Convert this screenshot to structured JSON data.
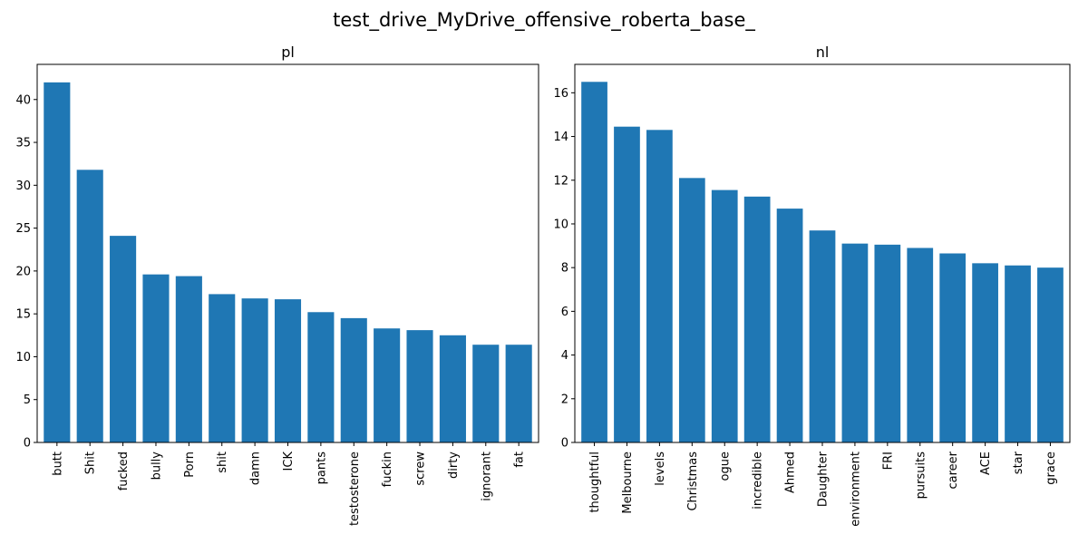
{
  "figure": {
    "title": "test_drive_MyDrive_offensive_roberta_base_"
  },
  "colors": {
    "bar": "#1f77b4",
    "axes": "#000000",
    "background": "#ffffff"
  },
  "chart_data": [
    {
      "type": "bar",
      "title": "pl",
      "xlabel": "",
      "ylabel": "",
      "ylim": [
        0,
        44.1
      ],
      "yticks": [
        0,
        5,
        10,
        15,
        20,
        25,
        30,
        35,
        40
      ],
      "grid": false,
      "categories": [
        "butt",
        "Shit",
        "fucked",
        "bully",
        "Porn",
        "shit",
        "damn",
        "ICK",
        "pants",
        "testosterone",
        "fuckin",
        "screw",
        "dirty",
        "ignorant",
        "fat"
      ],
      "values": [
        42.0,
        31.8,
        24.1,
        19.6,
        19.4,
        17.3,
        16.8,
        16.7,
        15.2,
        14.5,
        13.3,
        13.1,
        12.5,
        11.4,
        11.4
      ]
    },
    {
      "type": "bar",
      "title": "nl",
      "xlabel": "",
      "ylabel": "",
      "ylim": [
        0,
        17.3
      ],
      "yticks": [
        0,
        2,
        4,
        6,
        8,
        10,
        12,
        14,
        16
      ],
      "grid": false,
      "categories": [
        "thoughtful",
        "Melbourne",
        "levels",
        "Christmas",
        "ogue",
        "incredible",
        "Ahmed",
        "Daughter",
        "environment",
        "FRI",
        "pursuits",
        "career",
        "ACE",
        "star",
        "grace"
      ],
      "values": [
        16.5,
        14.45,
        14.3,
        12.1,
        11.55,
        11.25,
        10.7,
        9.7,
        9.1,
        9.05,
        8.9,
        8.65,
        8.2,
        8.1,
        8.0
      ]
    }
  ]
}
